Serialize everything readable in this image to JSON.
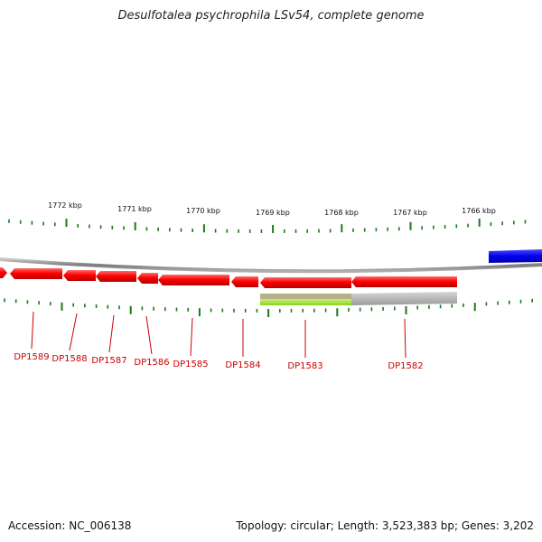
{
  "title": "Desulfotalea psychrophila LSv54, complete genome",
  "footer": {
    "accession": "Accession: NC_006138",
    "summary": "Topology: circular; Length: 3,523,383 bp; Genes: 3,202"
  },
  "colors": {
    "backbone": "#8a8a8a",
    "tick": "#1a7a1a",
    "gene_forward": "#ff0000",
    "gene_other_strand": "#0000ee",
    "gene_label": "#cc0000",
    "feature_green": "#99e033",
    "feature_gray": "#b0b0b0"
  },
  "scale_labels": [
    {
      "text": "1772 kbp"
    },
    {
      "text": "1771 kbp"
    },
    {
      "text": "1770 kbp"
    },
    {
      "text": "1769 kbp"
    },
    {
      "text": "1768 kbp"
    },
    {
      "text": "1767 kbp"
    },
    {
      "text": "1766 kbp"
    }
  ],
  "genes": [
    {
      "label": ""
    },
    {
      "label": "DP1589"
    },
    {
      "label": "DP1588"
    },
    {
      "label": "DP1587"
    },
    {
      "label": "DP1586"
    },
    {
      "label": "DP1585"
    },
    {
      "label": "DP1584"
    },
    {
      "label": "DP1583"
    },
    {
      "label": "DP1582"
    }
  ]
}
